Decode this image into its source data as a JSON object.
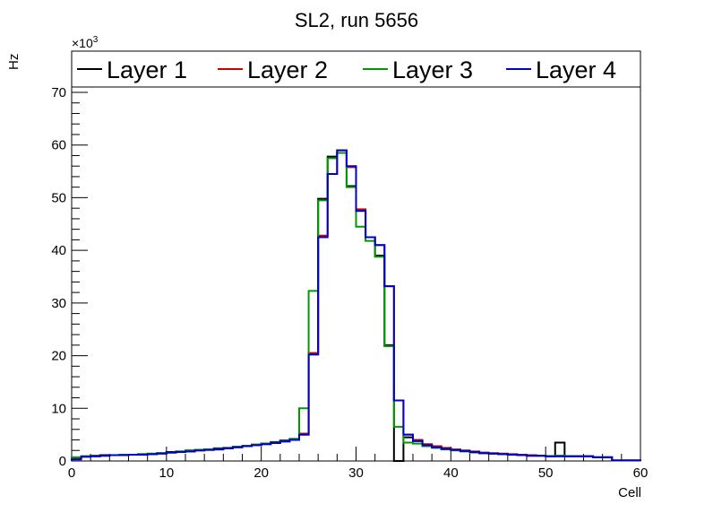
{
  "chart_data": {
    "type": "line",
    "title": "SL2, run 5656",
    "xlabel": "Cell",
    "ylabel": "Hz",
    "y_multiplier": "×10",
    "y_multiplier_exp": "3",
    "xlim": [
      0,
      60
    ],
    "ylim": [
      0,
      70
    ],
    "x_ticks": [
      0,
      10,
      20,
      30,
      40,
      50,
      60
    ],
    "y_ticks": [
      0,
      10,
      20,
      30,
      40,
      50,
      60,
      70
    ],
    "bin_width": 1,
    "legend_position": "top",
    "series": [
      {
        "name": "Layer 1",
        "color": "#000000",
        "values": [
          0.6,
          0.9,
          1.0,
          1.1,
          1.1,
          1.2,
          1.2,
          1.3,
          1.3,
          1.5,
          1.7,
          1.8,
          2.0,
          2.1,
          2.2,
          2.4,
          2.5,
          2.7,
          2.9,
          3.1,
          3.3,
          3.6,
          3.9,
          4.2,
          5.0,
          20.3,
          49.8,
          57.8,
          58.5,
          52.2,
          47.5,
          42.5,
          39.0,
          22.0,
          0.0,
          4.5,
          3.8,
          3.0,
          2.6,
          2.3,
          2.1,
          1.9,
          1.7,
          1.5,
          1.4,
          1.3,
          1.2,
          1.1,
          1.0,
          1.0,
          0.9,
          3.5,
          0.9,
          0.9,
          0.9,
          0.7,
          0.7,
          0.1,
          0.1,
          0.1
        ]
      },
      {
        "name": "Layer 2",
        "color": "#cc0000",
        "values": [
          0.5,
          0.8,
          0.9,
          1.0,
          1.1,
          1.1,
          1.2,
          1.2,
          1.3,
          1.4,
          1.6,
          1.7,
          1.8,
          2.0,
          2.1,
          2.2,
          2.4,
          2.6,
          2.8,
          3.0,
          3.2,
          3.4,
          3.7,
          4.0,
          5.2,
          20.5,
          42.8,
          54.5,
          59.0,
          55.8,
          47.8,
          42.5,
          41.0,
          33.2,
          11.5,
          5.0,
          4.0,
          3.2,
          2.8,
          2.5,
          2.2,
          2.0,
          1.8,
          1.6,
          1.5,
          1.4,
          1.3,
          1.2,
          1.1,
          1.0,
          0.9,
          0.9,
          0.9,
          0.9,
          0.9,
          0.7,
          0.7,
          0.1,
          0.1,
          0.1
        ]
      },
      {
        "name": "Layer 3",
        "color": "#009900",
        "values": [
          0.7,
          0.9,
          1.0,
          1.0,
          1.1,
          1.2,
          1.2,
          1.3,
          1.4,
          1.5,
          1.6,
          1.8,
          2.0,
          2.1,
          2.2,
          2.3,
          2.5,
          2.7,
          2.9,
          3.1,
          3.3,
          3.5,
          3.8,
          4.2,
          10.0,
          32.3,
          49.5,
          57.5,
          58.5,
          52.0,
          44.5,
          41.8,
          38.8,
          21.8,
          6.5,
          3.5,
          3.3,
          2.8,
          2.5,
          2.2,
          2.0,
          1.8,
          1.6,
          1.5,
          1.4,
          1.3,
          1.2,
          1.1,
          1.0,
          1.0,
          0.9,
          1.0,
          0.9,
          0.9,
          0.9,
          0.7,
          0.7,
          0.1,
          0.1,
          0.1
        ]
      },
      {
        "name": "Layer 4",
        "color": "#0000cc",
        "values": [
          0.3,
          0.8,
          0.9,
          1.0,
          1.1,
          1.1,
          1.2,
          1.2,
          1.3,
          1.4,
          1.6,
          1.7,
          1.8,
          2.0,
          2.1,
          2.2,
          2.4,
          2.6,
          2.8,
          3.0,
          3.2,
          3.4,
          3.7,
          4.0,
          5.0,
          20.2,
          42.5,
          54.5,
          59.0,
          56.0,
          47.5,
          42.5,
          41.0,
          33.2,
          11.5,
          5.0,
          3.8,
          3.0,
          2.6,
          2.3,
          2.1,
          1.9,
          1.7,
          1.5,
          1.4,
          1.3,
          1.2,
          1.1,
          1.0,
          1.0,
          0.9,
          0.9,
          0.9,
          0.9,
          0.9,
          0.7,
          0.7,
          0.1,
          0.1,
          0.1
        ]
      }
    ]
  }
}
